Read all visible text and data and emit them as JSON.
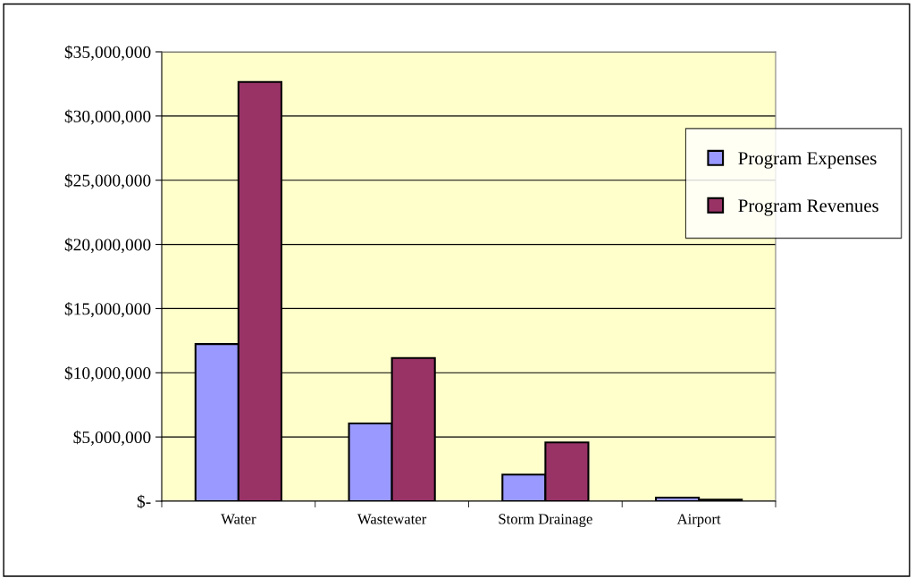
{
  "chart_data": {
    "type": "bar",
    "categories": [
      "Water",
      "Wastewater",
      "Storm Drainage",
      "Airport"
    ],
    "series": [
      {
        "name": "Program Expenses",
        "color": "#9999ff",
        "values": [
          12240000,
          6050000,
          2070000,
          280000
        ]
      },
      {
        "name": "Program Revenues",
        "color": "#993366",
        "values": [
          32650000,
          11150000,
          4580000,
          120000
        ]
      }
    ],
    "ylim": [
      0,
      35000000
    ],
    "yticks": [
      {
        "value": 0,
        "label": "$-"
      },
      {
        "value": 5000000,
        "label": "$5,000,000"
      },
      {
        "value": 10000000,
        "label": "$10,000,000"
      },
      {
        "value": 15000000,
        "label": "$15,000,000"
      },
      {
        "value": 20000000,
        "label": "$20,000,000"
      },
      {
        "value": 25000000,
        "label": "$25,000,000"
      },
      {
        "value": 30000000,
        "label": "$30,000,000"
      },
      {
        "value": 35000000,
        "label": "$35,000,000"
      }
    ],
    "grid": "y",
    "legend": "top right"
  }
}
